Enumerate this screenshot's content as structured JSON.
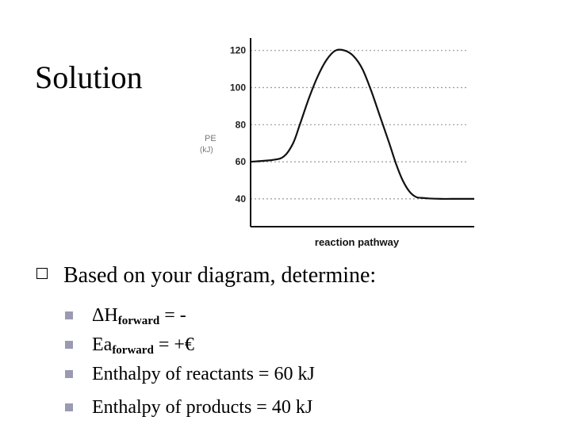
{
  "slide": {
    "title": "Solution",
    "main_bullet": "Based on your diagram, determine:",
    "sub_bullets": [
      {
        "main": "ΔH",
        "subscript": "forward",
        "rest": " =  -"
      },
      {
        "main": "Ea",
        "subscript": "forward",
        "rest": " =  +€"
      },
      {
        "main": "Enthalpy of reactants = 60 kJ",
        "subscript": "",
        "rest": ""
      },
      {
        "main": "Enthalpy of products = 40 kJ",
        "subscript": "",
        "rest": ""
      }
    ]
  },
  "chart_data": {
    "type": "line",
    "title": "",
    "xlabel": "reaction pathway",
    "ylabel_line1": "PE",
    "ylabel_line2": "(kJ)",
    "ylim": [
      25,
      125
    ],
    "xlim": [
      0,
      10
    ],
    "yticks": [
      40,
      60,
      80,
      100,
      120
    ],
    "ytick_labels": [
      "40",
      "60",
      "80",
      "100",
      "120"
    ],
    "grid": true,
    "series": [
      {
        "x": [
          0,
          1,
          1.5,
          1.9,
          2.2,
          2.6,
          3.0,
          3.4,
          3.8,
          4.2,
          4.6,
          5.0,
          5.4,
          5.8,
          6.2,
          6.5,
          6.8,
          7.1,
          7.4,
          7.7,
          8.0,
          8.5,
          9.0,
          10
        ],
        "y": [
          60,
          61,
          63,
          70,
          80,
          94,
          106,
          115,
          120,
          120,
          117,
          110,
          98,
          84,
          70,
          59,
          50,
          44,
          41,
          40.5,
          40.2,
          40,
          40,
          40
        ]
      }
    ]
  }
}
